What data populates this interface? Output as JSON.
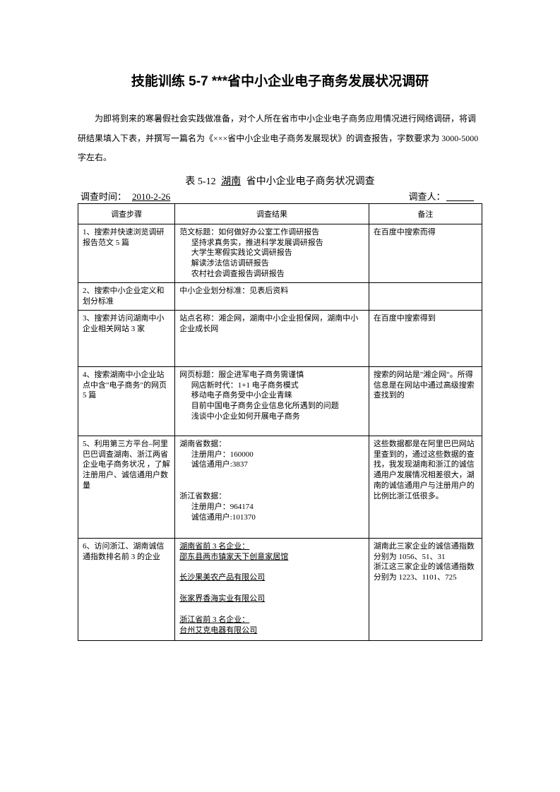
{
  "title": "技能训练 5-7 ***省中小企业电子商务发展状况调研",
  "intro": "为即将到来的寒暑假社会实践做准备，对个人所在省市中小企业电子商务应用情况进行网络调研，将调研结果填入下表，并撰写一篇名为《×××省中小企业电子商务发展现状》的调查报告，字数要求为 3000-5000 字左右。",
  "tableTitle": {
    "prefix": "表 5-12",
    "province": "湖南",
    "suffix": "省中小企业电子商务状况调查"
  },
  "meta": {
    "timeLabel": "调查时间：",
    "timeValue": "2010-2-26",
    "personLabel": "调查人：",
    "personValue": "　　　"
  },
  "headers": {
    "step": "调查步骤",
    "result": "调查结果",
    "remark": "备注"
  },
  "rows": [
    {
      "step": "1、搜索并快速浏览调研报告范文 5 篇",
      "result_line1": "范文标题：如何做好办公室工作调研报告",
      "result_line2": "坚持求真务实，推进科学发展调研报告",
      "result_line3": "大学生寒假实践论文调研报告",
      "result_line4": "解读涉法信访调研报告",
      "result_line5": "农村社会调查报告调研报告",
      "remark": "在百度中搜索而得"
    },
    {
      "step": "2、搜索中小企业定义和划分标准",
      "result": "中小企业划分标准：见表后资料",
      "remark": ""
    },
    {
      "step": "3、搜索并访问湖南中小企业相关网站 3 家",
      "result": "站点名称：湘企网，湖南中小企业担保网，湖南中小企业成长网",
      "remark": "在百度中搜索得到"
    },
    {
      "step": "4、搜索湖南中小企业站点中含\"电子商务\"的网页 5 篇",
      "result_line1": "网页标题：服企进军电子商务需谨慎",
      "result_line2": "网店新时代：1+1 电子商务模式",
      "result_line3": "移动电子商务受中小企业青睐",
      "result_line4": "目前中国电子商务企业信息化所遇到的问题",
      "result_line5": "浅谈中小企业如何开展电子商务",
      "remark": "搜索的网站是\"湘企网\"。所得信息是在网站中通过高级搜索查找到的"
    },
    {
      "step": "5、利用第三方平台–阿里巴巴调查湖南、浙江两省企业电子商务状况 ，了解注册用户、诚信通用户数量",
      "result_line1": "湖南省数据：",
      "result_line2": "注册用户：160000",
      "result_line3": "诚信通用户:3837",
      "result_line4": "浙江省数据：",
      "result_line5": "注册用户：964174",
      "result_line6": "诚信通用户:101370",
      "remark": "这些数据都是在阿里巴巴网站里查到的，通过这些数据的查找，我发现湖南和浙江的诚信通用户发展情况相差很大，湖南的诚信通用户与注册用户的比例比浙江低很多。"
    },
    {
      "step": "6、访问浙江、湖南诚信通指数排名前 3 的企业",
      "result_line1": "湖南省前 3 名企业：",
      "result_u1": "邵东县两市镇家天下创意家居馆",
      "result_u2": "长沙果美农产品有限公司",
      "result_u3": "张家界香海实业有限公司",
      "result_line2": "浙江省前 3 名企业：",
      "result_u4": "台州艾克电器有限公司",
      "remark_line1": "湖南此三家企业的诚信通指数分别为 1056、51、31",
      "remark_line2": "浙江这三家企业的诚信通指数分别为 1223、1101、725"
    }
  ]
}
